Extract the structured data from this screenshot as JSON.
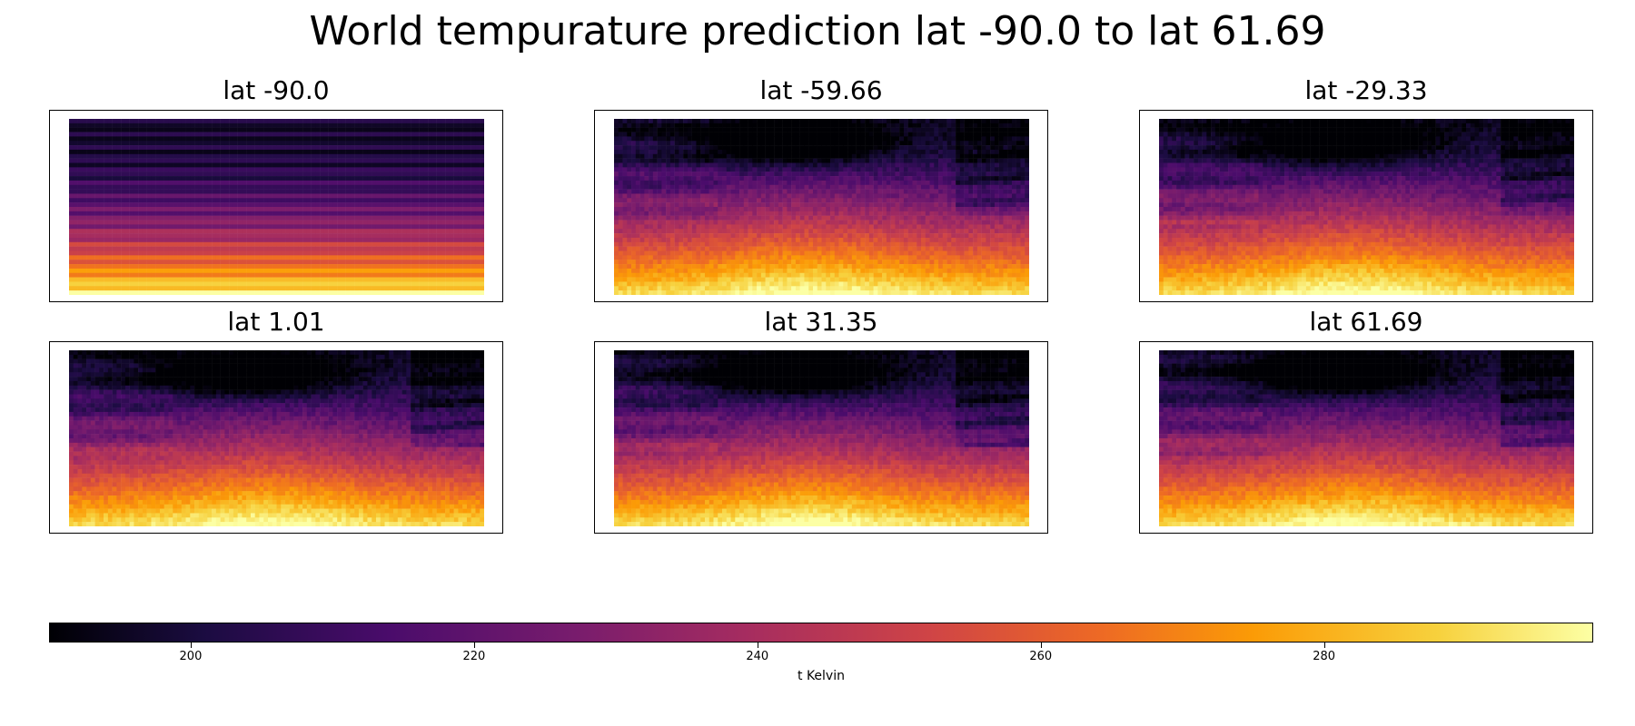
{
  "title": "World tempurature prediction lat -90.0 to lat 61.69",
  "colormap": [
    "#000004",
    "#1b0c41",
    "#4a0c6b",
    "#781c6d",
    "#a52c60",
    "#cf4446",
    "#ed6925",
    "#fb9b06",
    "#f7d13d",
    "#fcffa4"
  ],
  "chart_data": {
    "type": "heatmap",
    "panels": [
      {
        "title": "lat -90.0",
        "pattern": "stripes"
      },
      {
        "title": "lat -59.66",
        "pattern": "field"
      },
      {
        "title": "lat -29.33",
        "pattern": "field"
      },
      {
        "title": "lat 1.01",
        "pattern": "field"
      },
      {
        "title": "lat 31.35",
        "pattern": "field"
      },
      {
        "title": "lat 61.69",
        "pattern": "field"
      }
    ],
    "colorbar": {
      "label": "t Kelvin",
      "range": [
        190,
        299
      ],
      "ticks": [
        200,
        220,
        240,
        260,
        280
      ]
    }
  }
}
